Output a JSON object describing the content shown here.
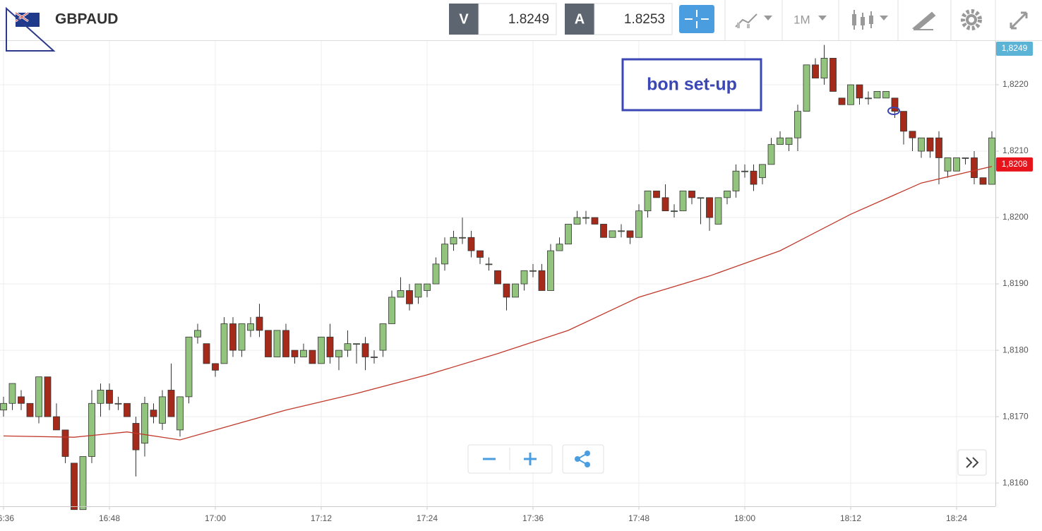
{
  "toolbar": {
    "symbol": "GBPAUD",
    "bid_label": "V",
    "bid": 1.8249,
    "ask_label": "A",
    "ask": 1.8253,
    "timeframe": "1M"
  },
  "chart_data": {
    "type": "candlestick",
    "x": [
      "16:36",
      "16:37",
      "16:38",
      "16:39",
      "16:40",
      "16:41",
      "16:42",
      "16:43",
      "16:44",
      "16:45",
      "16:46",
      "16:47",
      "16:48",
      "16:49",
      "16:50",
      "16:51",
      "16:52",
      "16:53",
      "16:54",
      "16:55",
      "16:56",
      "16:57",
      "16:58",
      "16:59",
      "17:00",
      "17:01",
      "17:02",
      "17:03",
      "17:04",
      "17:05",
      "17:06",
      "17:07",
      "17:08",
      "17:09",
      "17:10",
      "17:11",
      "17:12",
      "17:13",
      "17:14",
      "17:15",
      "17:16",
      "17:17",
      "17:18",
      "17:19",
      "17:20",
      "17:21",
      "17:22",
      "17:23",
      "17:24",
      "17:25",
      "17:26",
      "17:27",
      "17:28",
      "17:29",
      "17:30",
      "17:31",
      "17:32",
      "17:33",
      "17:34",
      "17:35",
      "17:36",
      "17:37",
      "17:38",
      "17:39",
      "17:40",
      "17:41",
      "17:42",
      "17:43",
      "17:44",
      "17:45",
      "17:46",
      "17:47",
      "17:48",
      "17:49",
      "17:50",
      "17:51",
      "17:52",
      "17:53",
      "17:54",
      "17:55",
      "17:56",
      "17:57",
      "17:58",
      "17:59",
      "18:00",
      "18:01",
      "18:02",
      "18:03",
      "18:04",
      "18:05",
      "18:06",
      "18:07",
      "18:08",
      "18:09",
      "18:10",
      "18:11",
      "18:12",
      "18:13",
      "18:14",
      "18:15",
      "18:16",
      "18:17",
      "18:18",
      "18:19",
      "18:20",
      "18:21",
      "18:22",
      "18:23",
      "18:24",
      "18:25",
      "18:26",
      "18:27",
      "18:28"
    ],
    "open": [
      1.8171,
      1.8172,
      1.8173,
      1.8172,
      1.817,
      1.8176,
      1.817,
      1.8168,
      1.8163,
      1.8156,
      1.8164,
      1.8172,
      1.8174,
      1.8172,
      1.8172,
      1.8169,
      1.8166,
      1.8171,
      1.8169,
      1.8174,
      1.8168,
      1.8173,
      1.8182,
      1.8181,
      1.8178,
      1.8178,
      1.8184,
      1.818,
      1.8183,
      1.8185,
      1.8183,
      1.8179,
      1.8183,
      1.818,
      1.8179,
      1.818,
      1.8178,
      1.8182,
      1.8179,
      1.818,
      1.8181,
      1.8181,
      1.8179,
      1.818,
      1.8184,
      1.8188,
      1.8189,
      1.8188,
      1.8189,
      1.819,
      1.8193,
      1.8196,
      1.8197,
      1.8197,
      1.8195,
      1.8193,
      1.8192,
      1.819,
      1.8188,
      1.819,
      1.8192,
      1.8192,
      1.8189,
      1.8195,
      1.8196,
      1.8199,
      1.82,
      1.82,
      1.8199,
      1.8197,
      1.8198,
      1.8198,
      1.8197,
      1.8201,
      1.8204,
      1.8203,
      1.8201,
      1.8201,
      1.8204,
      1.8203,
      1.8203,
      1.8199,
      1.8203,
      1.8204,
      1.8207,
      1.8207,
      1.8206,
      1.8208,
      1.8211,
      1.8211,
      1.8212,
      1.8216,
      1.8223,
      1.8221,
      1.8224,
      1.8218,
      1.8217,
      1.822,
      1.8218,
      1.8218,
      1.8218,
      1.8218,
      1.8216,
      1.8213,
      1.821,
      1.8212,
      1.8212,
      1.8207,
      1.8207,
      1.8209,
      1.8209,
      1.8206,
      1.8205
    ],
    "high": [
      1.8173,
      1.8175,
      1.8174,
      1.8172,
      1.8176,
      1.8176,
      1.8172,
      1.8168,
      1.8163,
      1.8164,
      1.8174,
      1.8175,
      1.8175,
      1.8173,
      1.8172,
      1.817,
      1.8173,
      1.8172,
      1.8174,
      1.8178,
      1.8173,
      1.8182,
      1.8184,
      1.8181,
      1.8178,
      1.8185,
      1.8185,
      1.8184,
      1.8185,
      1.8187,
      1.8183,
      1.8183,
      1.8184,
      1.818,
      1.8181,
      1.818,
      1.8182,
      1.8184,
      1.818,
      1.8183,
      1.8181,
      1.8182,
      1.818,
      1.8184,
      1.8189,
      1.8191,
      1.819,
      1.819,
      1.819,
      1.8194,
      1.8197,
      1.8198,
      1.82,
      1.8198,
      1.8195,
      1.8194,
      1.8192,
      1.819,
      1.819,
      1.8192,
      1.8193,
      1.8193,
      1.8196,
      1.8197,
      1.8199,
      1.8201,
      1.8201,
      1.82,
      1.8199,
      1.8198,
      1.8199,
      1.8198,
      1.8202,
      1.8204,
      1.8204,
      1.8205,
      1.8202,
      1.8204,
      1.8204,
      1.8203,
      1.8203,
      1.8203,
      1.8204,
      1.8208,
      1.8208,
      1.8208,
      1.8208,
      1.8212,
      1.8213,
      1.8212,
      1.8217,
      1.8223,
      1.8224,
      1.8226,
      1.8224,
      1.8218,
      1.822,
      1.822,
      1.8219,
      1.8219,
      1.8219,
      1.8218,
      1.8216,
      1.8213,
      1.8212,
      1.8212,
      1.8213,
      1.8209,
      1.8209,
      1.8209,
      1.821,
      1.8206,
      1.8213
    ],
    "low": [
      1.817,
      1.8171,
      1.8171,
      1.817,
      1.8169,
      1.817,
      1.8168,
      1.8163,
      1.8156,
      1.8156,
      1.8163,
      1.817,
      1.8171,
      1.8171,
      1.817,
      1.8161,
      1.8164,
      1.8169,
      1.8168,
      1.817,
      1.8167,
      1.8172,
      1.8181,
      1.8178,
      1.8176,
      1.8178,
      1.8179,
      1.8179,
      1.8182,
      1.8182,
      1.8179,
      1.8179,
      1.8179,
      1.8178,
      1.8179,
      1.8178,
      1.8178,
      1.8178,
      1.8177,
      1.8179,
      1.8178,
      1.8177,
      1.8178,
      1.8179,
      1.8184,
      1.8188,
      1.8186,
      1.8187,
      1.8188,
      1.819,
      1.8192,
      1.8195,
      1.8196,
      1.8194,
      1.8193,
      1.8192,
      1.819,
      1.8186,
      1.8188,
      1.8189,
      1.8191,
      1.8189,
      1.8189,
      1.8195,
      1.8196,
      1.8199,
      1.8199,
      1.8199,
      1.8197,
      1.8197,
      1.8197,
      1.8196,
      1.8197,
      1.82,
      1.8203,
      1.8201,
      1.82,
      1.8201,
      1.8202,
      1.8199,
      1.8198,
      1.8199,
      1.8202,
      1.8203,
      1.8206,
      1.8204,
      1.8205,
      1.8208,
      1.8211,
      1.821,
      1.821,
      1.8216,
      1.8221,
      1.822,
      1.8219,
      1.8217,
      1.8217,
      1.8217,
      1.8217,
      1.8218,
      1.8218,
      1.8215,
      1.8211,
      1.821,
      1.8209,
      1.8209,
      1.8205,
      1.8206,
      1.8207,
      1.8208,
      1.8205,
      1.8205,
      1.8205
    ],
    "close": [
      1.8172,
      1.8175,
      1.8172,
      1.817,
      1.8176,
      1.817,
      1.8168,
      1.8164,
      1.8156,
      1.8164,
      1.8172,
      1.8174,
      1.8172,
      1.8172,
      1.817,
      1.8165,
      1.8172,
      1.817,
      1.8173,
      1.817,
      1.8173,
      1.8182,
      1.8183,
      1.8178,
      1.8177,
      1.8184,
      1.818,
      1.8184,
      1.8184,
      1.8183,
      1.8179,
      1.8183,
      1.8179,
      1.8179,
      1.818,
      1.8178,
      1.8182,
      1.8179,
      1.818,
      1.8181,
      1.8181,
      1.8179,
      1.8179,
      1.8184,
      1.8188,
      1.8189,
      1.8187,
      1.819,
      1.819,
      1.8193,
      1.8196,
      1.8197,
      1.8197,
      1.8195,
      1.8194,
      1.8193,
      1.819,
      1.8188,
      1.819,
      1.8192,
      1.8192,
      1.8189,
      1.8195,
      1.8196,
      1.8199,
      1.82,
      1.82,
      1.8199,
      1.8197,
      1.8198,
      1.8198,
      1.8197,
      1.8201,
      1.8204,
      1.8203,
      1.8201,
      1.8201,
      1.8204,
      1.8203,
      1.8203,
      1.82,
      1.8203,
      1.8204,
      1.8207,
      1.8207,
      1.8205,
      1.8208,
      1.8211,
      1.8212,
      1.8212,
      1.8216,
      1.8223,
      1.8221,
      1.8224,
      1.8219,
      1.8217,
      1.822,
      1.8218,
      1.8218,
      1.8219,
      1.8219,
      1.8216,
      1.8213,
      1.8212,
      1.8212,
      1.821,
      1.8209,
      1.8209,
      1.8209,
      1.8209,
      1.8206,
      1.8205,
      1.8212
    ],
    "up_color": "#93c47d",
    "down_color": "#a52a1a",
    "moving_average": {
      "x": [
        "16:36",
        "16:44",
        "16:50",
        "16:56",
        "17:00",
        "17:08",
        "17:16",
        "17:24",
        "17:32",
        "17:40",
        "17:48",
        "17:56",
        "18:04",
        "18:12",
        "18:20",
        "18:28"
      ],
      "values": [
        1.81671,
        1.81669,
        1.81677,
        1.81665,
        1.8168,
        1.8171,
        1.81735,
        1.81763,
        1.81795,
        1.8183,
        1.8188,
        1.81912,
        1.8195,
        1.82005,
        1.82052,
        1.82077
      ],
      "color": "#c0392b"
    },
    "xlim": [
      "16:36",
      "18:28"
    ],
    "xticks": [
      "16:36",
      "16:48",
      "17:00",
      "17:12",
      "17:24",
      "17:36",
      "17:48",
      "18:00",
      "18:12",
      "18:24"
    ],
    "ylim": [
      1.81565,
      1.82266
    ],
    "yticks": [
      {
        "value": 1.816,
        "label": "1,8160"
      },
      {
        "value": 1.817,
        "label": "1,8170"
      },
      {
        "value": 1.818,
        "label": "1,8180"
      },
      {
        "value": 1.819,
        "label": "1,8190"
      },
      {
        "value": 1.82,
        "label": "1,8200"
      },
      {
        "value": 1.821,
        "label": "1,8210"
      },
      {
        "value": 1.822,
        "label": "1,8220"
      }
    ],
    "grid": true,
    "last_price_badge": "1,8249",
    "ma_badge": {
      "value": 1.8208,
      "label": "1,8208"
    },
    "annotation": "bon set-up"
  }
}
